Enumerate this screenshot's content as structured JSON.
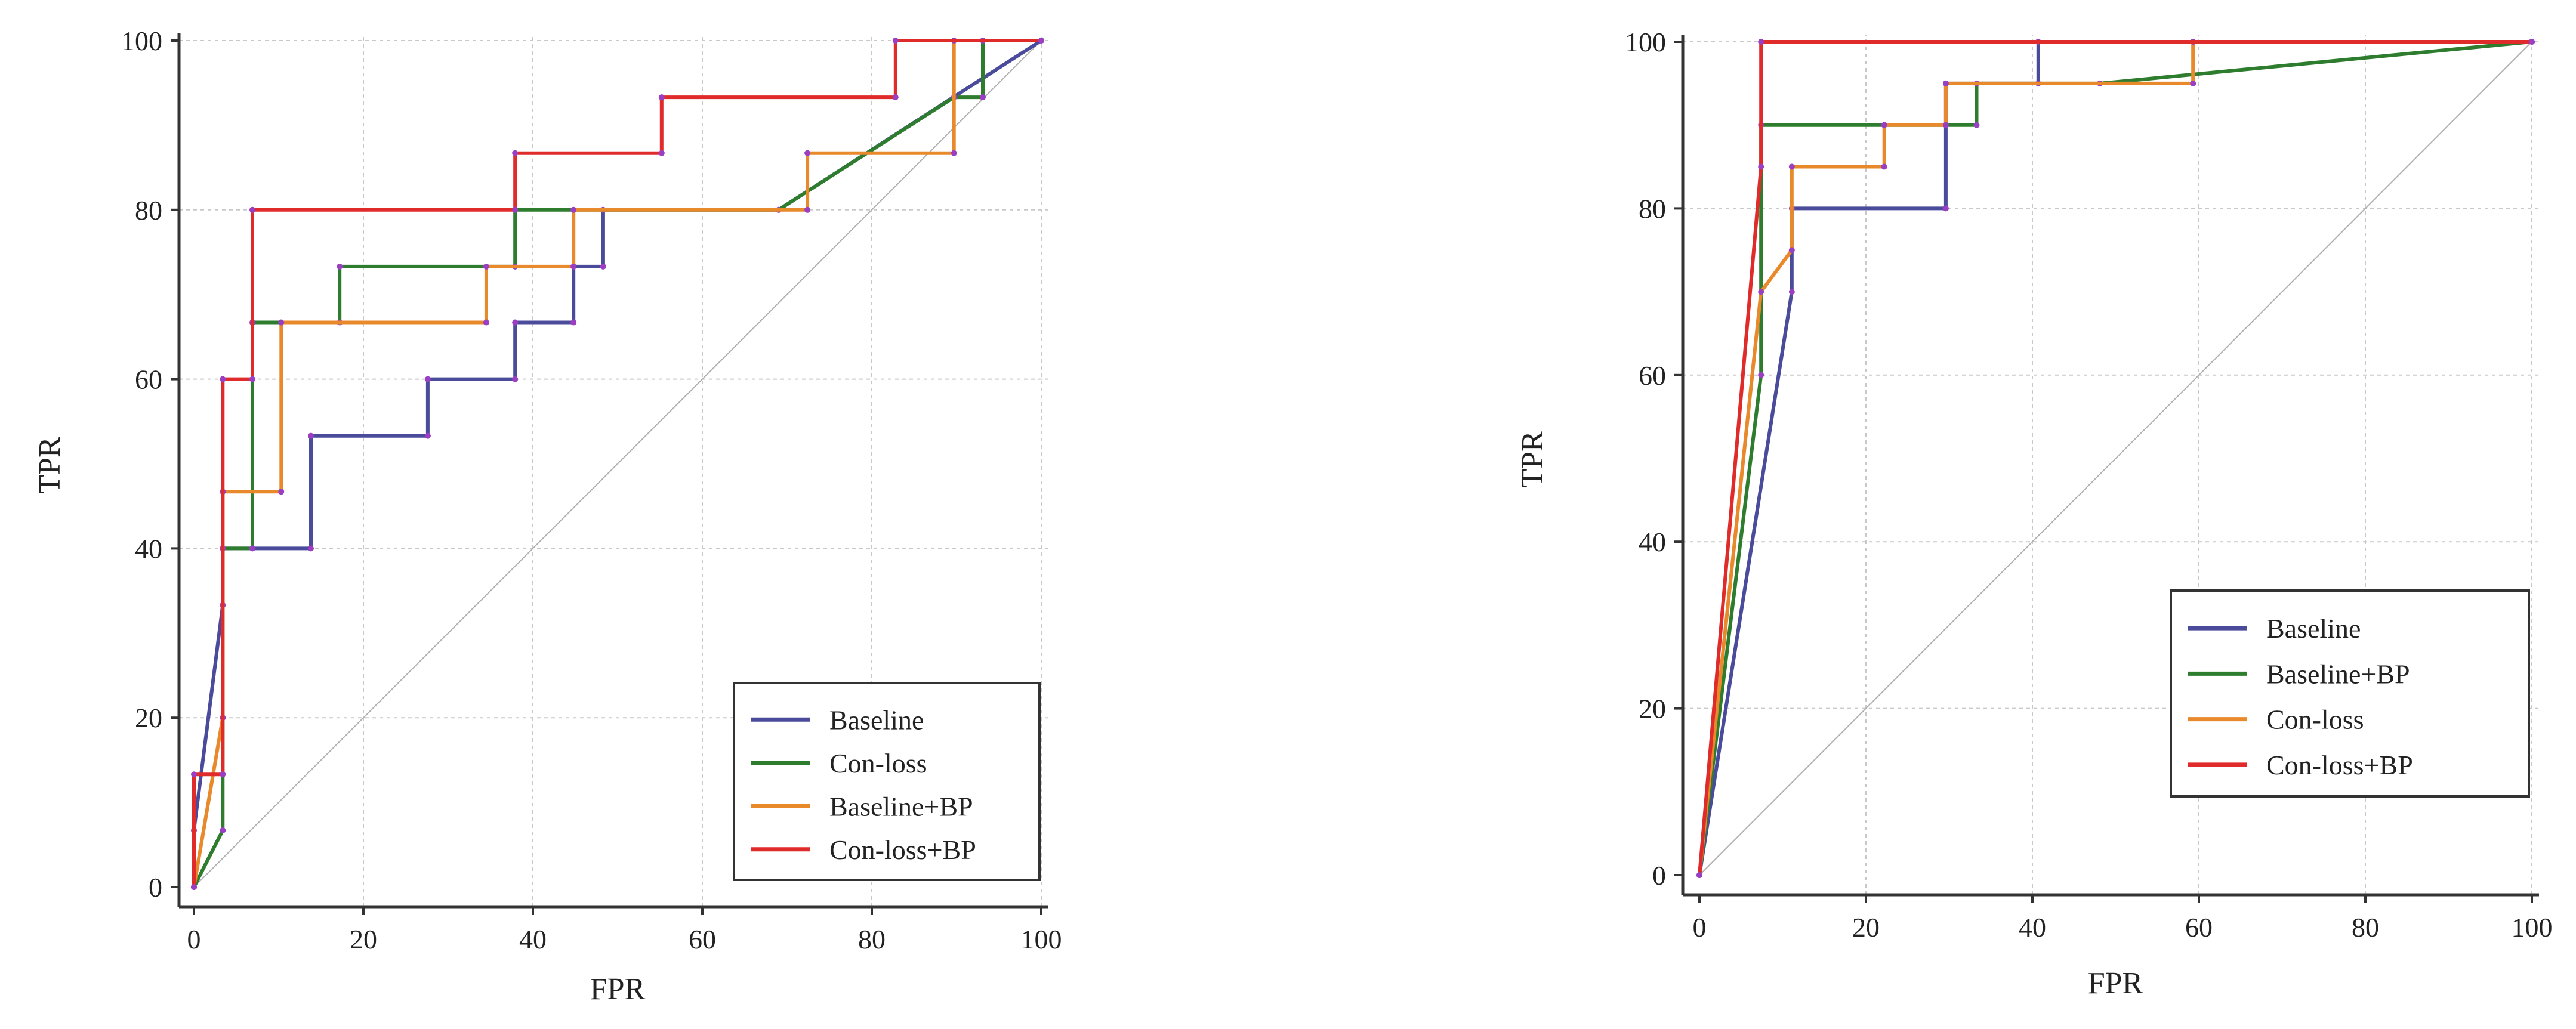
{
  "chart_data": [
    {
      "type": "line",
      "xlabel": "FPR",
      "ylabel": "TPR",
      "xlim": [
        0,
        100
      ],
      "ylim": [
        0,
        100
      ],
      "xticks": [
        "0",
        "20",
        "40",
        "60",
        "80",
        "100"
      ],
      "yticks": [
        "0",
        "20",
        "40",
        "60",
        "80",
        "100"
      ],
      "grid": true,
      "diagonal_reference": true,
      "legend_position": "bottom-right",
      "series": [
        {
          "name": "Baseline",
          "color": "#4b4b9c",
          "points": [
            [
              0,
              0
            ],
            [
              0,
              6.7
            ],
            [
              3.4,
              33.3
            ],
            [
              3.4,
              40
            ],
            [
              13.8,
              40
            ],
            [
              13.8,
              53.3
            ],
            [
              27.6,
              53.3
            ],
            [
              27.6,
              60
            ],
            [
              37.9,
              60
            ],
            [
              37.9,
              66.7
            ],
            [
              44.8,
              66.7
            ],
            [
              44.8,
              73.3
            ],
            [
              48.3,
              73.3
            ],
            [
              48.3,
              80
            ],
            [
              69,
              80
            ],
            [
              100,
              100
            ]
          ]
        },
        {
          "name": "Con-loss",
          "color": "#2e7d2e",
          "points": [
            [
              0,
              0
            ],
            [
              3.4,
              6.7
            ],
            [
              3.4,
              40
            ],
            [
              6.9,
              40
            ],
            [
              6.9,
              66.7
            ],
            [
              17.2,
              66.7
            ],
            [
              17.2,
              73.3
            ],
            [
              37.9,
              73.3
            ],
            [
              37.9,
              80
            ],
            [
              69,
              80
            ],
            [
              89.7,
              93.3
            ],
            [
              93.1,
              93.3
            ],
            [
              93.1,
              100
            ],
            [
              100,
              100
            ]
          ]
        },
        {
          "name": "Baseline+BP",
          "color": "#e8892b",
          "points": [
            [
              0,
              0
            ],
            [
              3.4,
              20
            ],
            [
              3.4,
              46.7
            ],
            [
              10.3,
              46.7
            ],
            [
              10.3,
              66.7
            ],
            [
              34.5,
              66.7
            ],
            [
              34.5,
              73.3
            ],
            [
              44.8,
              73.3
            ],
            [
              44.8,
              80
            ],
            [
              72.4,
              80
            ],
            [
              72.4,
              86.7
            ],
            [
              89.7,
              86.7
            ],
            [
              89.7,
              100
            ],
            [
              100,
              100
            ]
          ]
        },
        {
          "name": "Con-loss+BP",
          "color": "#e02b2b",
          "points": [
            [
              0,
              0
            ],
            [
              0,
              13.3
            ],
            [
              3.4,
              13.3
            ],
            [
              3.4,
              60
            ],
            [
              6.9,
              60
            ],
            [
              6.9,
              80
            ],
            [
              37.9,
              80
            ],
            [
              37.9,
              86.7
            ],
            [
              55.2,
              86.7
            ],
            [
              55.2,
              93.3
            ],
            [
              82.8,
              93.3
            ],
            [
              82.8,
              100
            ],
            [
              100,
              100
            ]
          ]
        }
      ]
    },
    {
      "type": "line",
      "xlabel": "FPR",
      "ylabel": "TPR",
      "xlim": [
        0,
        100
      ],
      "ylim": [
        0,
        100
      ],
      "xticks": [
        "0",
        "20",
        "40",
        "60",
        "80",
        "100"
      ],
      "yticks": [
        "0",
        "20",
        "40",
        "60",
        "80",
        "100"
      ],
      "grid": true,
      "diagonal_reference": true,
      "legend_position": "bottom-right",
      "series": [
        {
          "name": "Baseline",
          "color": "#4b4b9c",
          "points": [
            [
              0,
              0
            ],
            [
              11.1,
              70
            ],
            [
              11.1,
              80
            ],
            [
              29.6,
              80
            ],
            [
              29.6,
              95
            ],
            [
              40.7,
              95
            ],
            [
              40.7,
              100
            ],
            [
              100,
              100
            ]
          ]
        },
        {
          "name": "Baseline+BP",
          "color": "#2e7d2e",
          "points": [
            [
              0,
              0
            ],
            [
              7.4,
              60
            ],
            [
              7.4,
              90
            ],
            [
              22.2,
              90
            ],
            [
              22.2,
              90
            ],
            [
              33.3,
              90
            ],
            [
              33.3,
              95
            ],
            [
              48.1,
              95
            ],
            [
              100,
              100
            ]
          ]
        },
        {
          "name": "Con-loss",
          "color": "#e8892b",
          "points": [
            [
              0,
              0
            ],
            [
              7.4,
              70
            ],
            [
              11.1,
              75
            ],
            [
              11.1,
              85
            ],
            [
              22.2,
              85
            ],
            [
              22.2,
              90
            ],
            [
              29.6,
              90
            ],
            [
              29.6,
              95
            ],
            [
              59.3,
              95
            ],
            [
              59.3,
              100
            ],
            [
              100,
              100
            ]
          ]
        },
        {
          "name": "Con-loss+BP",
          "color": "#e02b2b",
          "points": [
            [
              0,
              0
            ],
            [
              7.4,
              85
            ],
            [
              7.4,
              100
            ],
            [
              100,
              100
            ]
          ]
        }
      ]
    }
  ]
}
